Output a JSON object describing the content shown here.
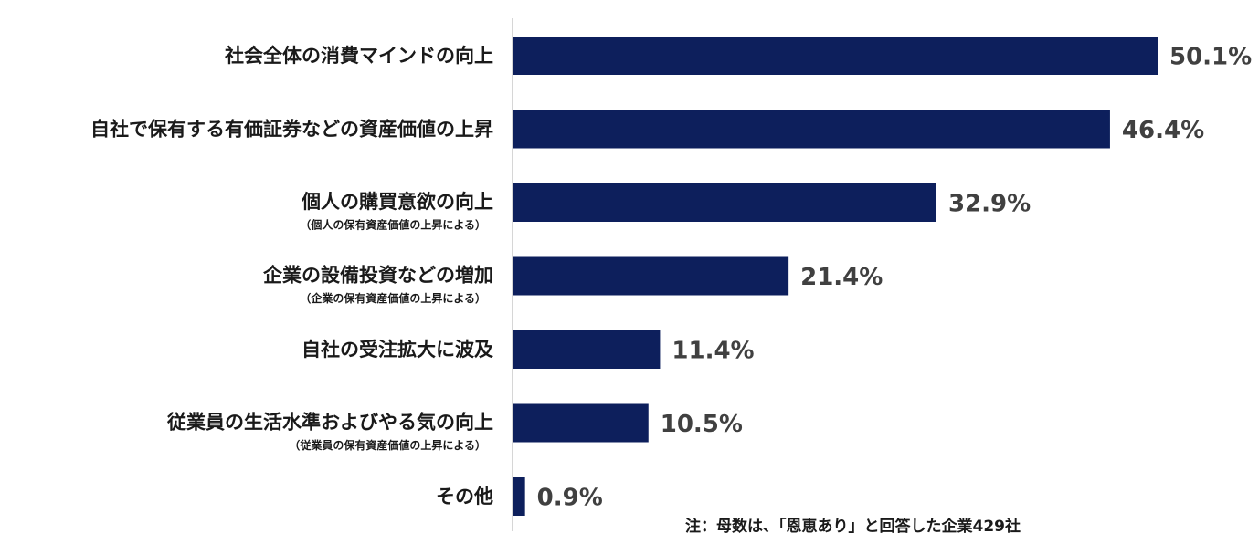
{
  "chart_data": {
    "type": "bar",
    "orientation": "horizontal",
    "categories": [
      "社会全体の消費マインドの向上",
      "自社で保有する有価証券などの資産価値の上昇",
      "個人の購買意欲の向上",
      "企業の設備投資などの増加",
      "自社の受注拡大に波及",
      "従業員の生活水準およびやる気の向上",
      "その他"
    ],
    "sublabels": [
      "",
      "",
      "（個人の保有資産価値の上昇による）",
      "（企業の保有資産価値の上昇による）",
      "",
      "（従業員の保有資産価値の上昇による）",
      ""
    ],
    "values": [
      50.1,
      46.4,
      32.9,
      21.4,
      11.4,
      10.5,
      0.9
    ],
    "value_labels": [
      "50.1%",
      "46.4%",
      "32.9%",
      "21.4%",
      "11.4%",
      "10.5%",
      "0.9%"
    ],
    "unit": "%",
    "xlim": [
      0,
      50.1
    ],
    "grid": false,
    "legend": "none",
    "colors": {
      "bar": "#0d1f5c",
      "value_text": "#404040"
    }
  },
  "footnote": "注：母数は、「恩恵あり」と回答した企業429社"
}
